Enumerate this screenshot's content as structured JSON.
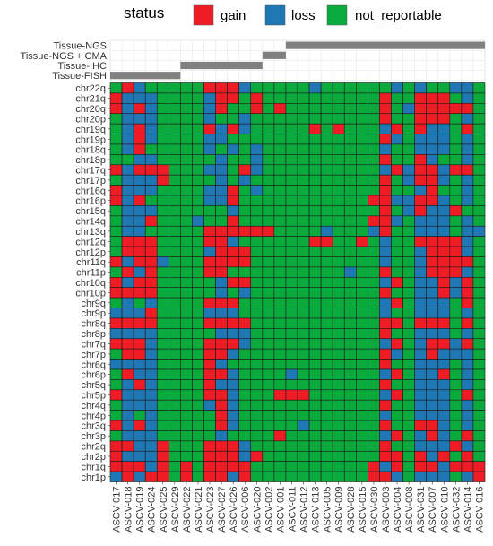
{
  "chart_data": {
    "type": "heatmap",
    "legend": {
      "title": "status",
      "placement": "top",
      "entries": [
        {
          "label": "gain",
          "color": "#ee1c25"
        },
        {
          "label": "loss",
          "color": "#1f77b4"
        },
        {
          "label": "not_reportable",
          "color": "#0aab3c"
        }
      ]
    },
    "samples": [
      "ASCV-017",
      "ASCV-018",
      "ASCV-019",
      "ASCV-024",
      "ASCV-025",
      "ASCV-029",
      "ASCV-022",
      "ASCV-021",
      "ASCV-023",
      "ASCV-027",
      "ASCV-026",
      "ASCV-006",
      "ASCV-020",
      "ASCV-002",
      "ASCV-001",
      "ASCV-011",
      "ASCV-012",
      "ASCV-013",
      "ASCV-005",
      "ASCV-009",
      "ASCV-028",
      "ASCV-015",
      "ASCV-030",
      "ASCV-003",
      "ASCV-004",
      "ASCV-008",
      "ASCV-031",
      "ASCV-007",
      "ASCV-010",
      "ASCV-032",
      "ASCV-014",
      "ASCV-016"
    ],
    "annotation_tracks": [
      {
        "label": "Tissue-NGS",
        "start_sample": "ASCV-011",
        "end_sample": "ASCV-016"
      },
      {
        "label": "Tissue-NGS + CMA",
        "start_sample": "ASCV-002",
        "end_sample": "ASCV-001"
      },
      {
        "label": "Tissue-IHC",
        "start_sample": "ASCV-022",
        "end_sample": "ASCV-020"
      },
      {
        "label": "Tissue-FISH",
        "start_sample": "ASCV-017",
        "end_sample": "ASCV-029"
      }
    ],
    "chromosomes": [
      "chr22q",
      "chr21q",
      "chr20q",
      "chr20p",
      "chr19q",
      "chr19p",
      "chr18q",
      "chr18p",
      "chr17q",
      "chr17p",
      "chr16q",
      "chr16p",
      "chr15q",
      "chr14q",
      "chr13q",
      "chr12q",
      "chr12p",
      "chr11q",
      "chr11p",
      "chr10q",
      "chr10p",
      "chr9q",
      "chr9p",
      "chr8q",
      "chr8p",
      "chr7q",
      "chr7p",
      "chr6q",
      "chr6p",
      "chr5q",
      "chr5p",
      "chr4q",
      "chr4p",
      "chr3q",
      "chr3p",
      "chr2q",
      "chr2p",
      "chr1q",
      "chr1p"
    ],
    "matrix_legend": "G = gain, L = loss, N = not_reportable; one string per chromosome row, one letter per sample column",
    "matrix": [
      "NGLNNNNNGGGLNNNNNLNNNNNNLNLNNLLN",
      "GLLLNNNNLGGNGNNNNNNNNNNGNNGGGNLN",
      "GLGLNNNNLGNNGNGNNNNNNNNGNLGGGGGN",
      "NLLLNNNNLNNLNNNNNNNNNNNGNNGGGNLN",
      "NLGLNNNNGLGLNNNNNGNGNNNLGNGLLNGN",
      "NLGLNNNNLLNNNNNNNNNNNNNGLNLLLNLN",
      "NLGNNNNNLNLNLNNNNNNNNNNLNNLLLNLN",
      "NNLLNNNNNLNNLNNNNNNNNNNGNNGLNNLN",
      "GLGGGNNNLLNGLNNNNNNNNNNLGLGGLGGN",
      "NLLLGNNNNLNLNNNNNNNNNNNGNLGGLNLN",
      "GLLLNNNNLLGNLNNNNNNNNNNGNNLGNNLN",
      "GLGNNNNNLLGNNNNNNNNNNNGGLLGGLNLN",
      "NLLLNNNNNNLNNNNNNNNNNNNGNLGLLGNN",
      "NLLGNNNLNNGNNNNNNNNNNNGGLNLLLNLN",
      "NLLNNNNNGGGGGGNNNNLNNNLGNNLLLNLL",
      "NGGGNNNNGGLNNNNNNGGNNGNLNNGGGGLN",
      "NGGGNNNNLGGGNNNNNNNNNNNLNNLGGGLN",
      "GLGGLNNNGGGGNNNNNNNNNNNLNNLGGGGN",
      "NGLGNNNNGGNNNNNNNNNNLNNGNNLGGGLN",
      "GLGGNNNNNLGGNNNNNNNNNNNLGNLLGLGN",
      "GGGGNNNNNLNLNNNNNNNNNNNGNNLLGLGN",
      "NLNLNNNNGGGNNNNNNNNNNNNLGNLLLNGN",
      "LLLGNNNNLLLNNNNNNNNNNNNLNNLLLNLN",
      "GGGGNNNNGGGGNNNNNNNNNNNGGNGGGNGN",
      "LLLLNNNNNLLLNNNNNNNNNNNGNNLLLNLN",
      "GGGLNNNNGGGLNNNNNNNNNNNLGNLGGLGN",
      "NGGLNNNNGGLNNNNNNNNNNNNGLNLGLLLN",
      "LLLLNNNNGLNNNNNNNNNNNNNGNNLLLNLN",
      "NGLLNNNNGGLNNNNLNNNNNNNLGNLLGNLN",
      "NLGLNNNNGLLNNNNNNNNNNNNGNNLLLNLN",
      "GLLLNNNNGGLNNNGGGNNNNNNLGNLLLNGN",
      "NLLLNNNNLGLNNNNNNNNNNNNGNNLLLNLN",
      "NLNLNNNNNGLNNNNNNNNNNNNLNNLLLNLN",
      "GLGLNNNNNGLNNNNNLNNNNNNGNNGGLNLN",
      "NLLLNNNNNLNNNNGNNNNNNNNLGNLGLNGN",
      "GGLLGNNNGGGLNNNNNNNNNNNGNNLLLGLN",
      "GLLLGNNNGGGLGNNNNNNNNNNGGNGLGNGN",
      "GGGLGNGNGGGGNNNNNNNNNNGLGNGGLGGG",
      "LGLGGNGNGGLGNNNNNNNNNNGGLNLLLNLG"
    ]
  }
}
